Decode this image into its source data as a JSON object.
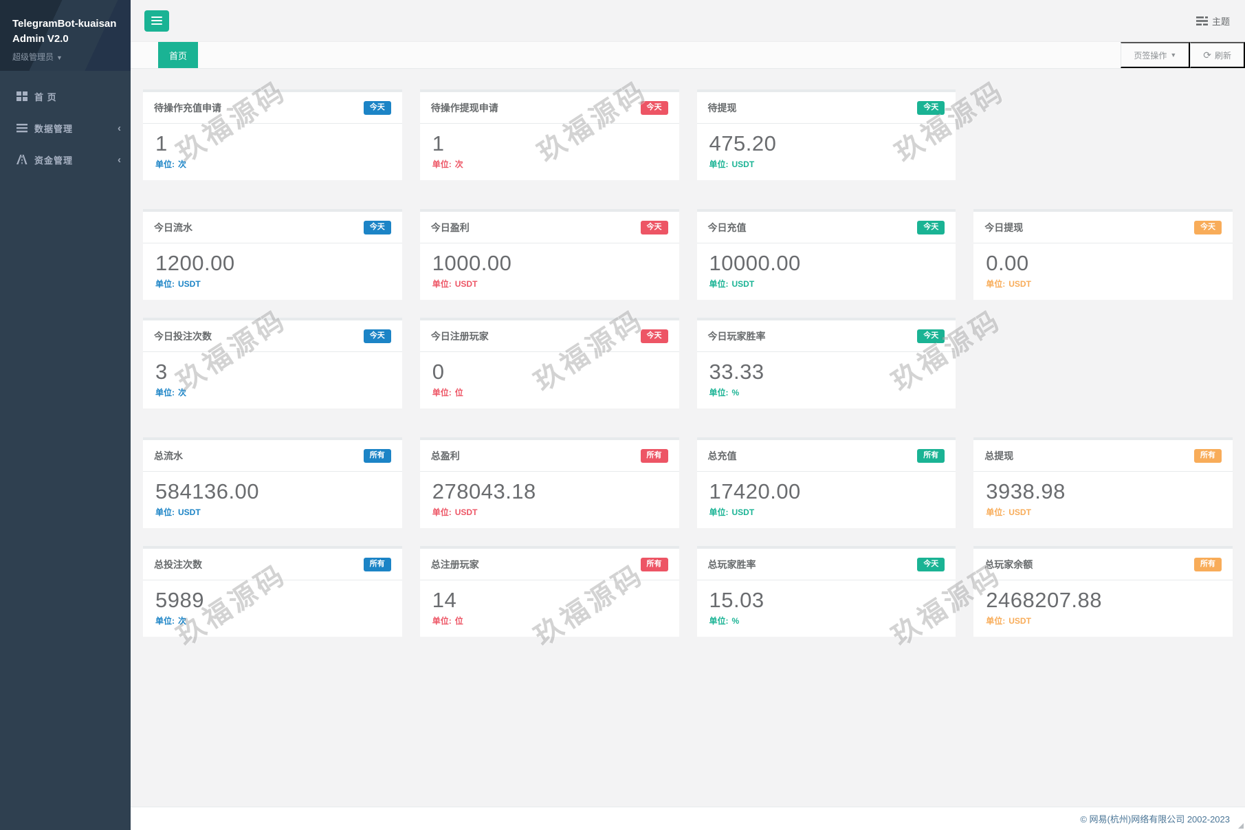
{
  "sidebar": {
    "title_line1": "TelegramBot-kuaisan",
    "title_line2": "Admin V2.0",
    "role_label": "超级管理员",
    "items": [
      {
        "label": "首 页",
        "icon": "grid-icon",
        "has_submenu": false
      },
      {
        "label": "数据管理",
        "icon": "list-icon",
        "has_submenu": true
      },
      {
        "label": "资金管理",
        "icon": "road-icon",
        "has_submenu": true
      }
    ]
  },
  "topbar": {
    "theme_label": "主题"
  },
  "tabbar": {
    "active_tab": "首页",
    "tab_actions_label": "页签操作",
    "refresh_label": "刷新"
  },
  "accent_colors": {
    "blue": "#1c84c6",
    "red": "#ed5565",
    "green": "#1ab394",
    "orange": "#f8ac59"
  },
  "brand_color": "#1ab394",
  "unit_prefix": "单位:",
  "stats_sections": [
    {
      "cards": [
        {
          "title": "待操作充值申请",
          "badge": "今天",
          "accent": "blue",
          "value": "1",
          "unit": "次"
        },
        {
          "title": "待操作提现申请",
          "badge": "今天",
          "accent": "red",
          "value": "1",
          "unit": "次"
        },
        {
          "title": "待提现",
          "badge": "今天",
          "accent": "green",
          "value": "475.20",
          "unit": "USDT"
        }
      ]
    },
    {
      "cards": [
        {
          "title": "今日流水",
          "badge": "今天",
          "accent": "blue",
          "value": "1200.00",
          "unit": "USDT"
        },
        {
          "title": "今日盈利",
          "badge": "今天",
          "accent": "red",
          "value": "1000.00",
          "unit": "USDT"
        },
        {
          "title": "今日充值",
          "badge": "今天",
          "accent": "green",
          "value": "10000.00",
          "unit": "USDT"
        },
        {
          "title": "今日提现",
          "badge": "今天",
          "accent": "orange",
          "value": "0.00",
          "unit": "USDT"
        },
        {
          "title": "今日投注次数",
          "badge": "今天",
          "accent": "blue",
          "value": "3",
          "unit": "次"
        },
        {
          "title": "今日注册玩家",
          "badge": "今天",
          "accent": "red",
          "value": "0",
          "unit": "位"
        },
        {
          "title": "今日玩家胜率",
          "badge": "今天",
          "accent": "green",
          "value": "33.33",
          "unit": "%"
        }
      ]
    },
    {
      "cards": [
        {
          "title": "总流水",
          "badge": "所有",
          "accent": "blue",
          "value": "584136.00",
          "unit": "USDT"
        },
        {
          "title": "总盈利",
          "badge": "所有",
          "accent": "red",
          "value": "278043.18",
          "unit": "USDT"
        },
        {
          "title": "总充值",
          "badge": "所有",
          "accent": "green",
          "value": "17420.00",
          "unit": "USDT"
        },
        {
          "title": "总提现",
          "badge": "所有",
          "accent": "orange",
          "value": "3938.98",
          "unit": "USDT"
        },
        {
          "title": "总投注次数",
          "badge": "所有",
          "accent": "blue",
          "value": "5989",
          "unit": "次"
        },
        {
          "title": "总注册玩家",
          "badge": "所有",
          "accent": "red",
          "value": "14",
          "unit": "位"
        },
        {
          "title": "总玩家胜率",
          "badge": "今天",
          "accent": "green",
          "value": "15.03",
          "unit": "%"
        },
        {
          "title": "总玩家余额",
          "badge": "所有",
          "accent": "orange",
          "value": "2468207.88",
          "unit": "USDT"
        }
      ]
    }
  ],
  "watermark": {
    "text": "玖福源码"
  },
  "footer": {
    "copyright": "© 网易(杭州)网络有限公司 2002-2023"
  }
}
